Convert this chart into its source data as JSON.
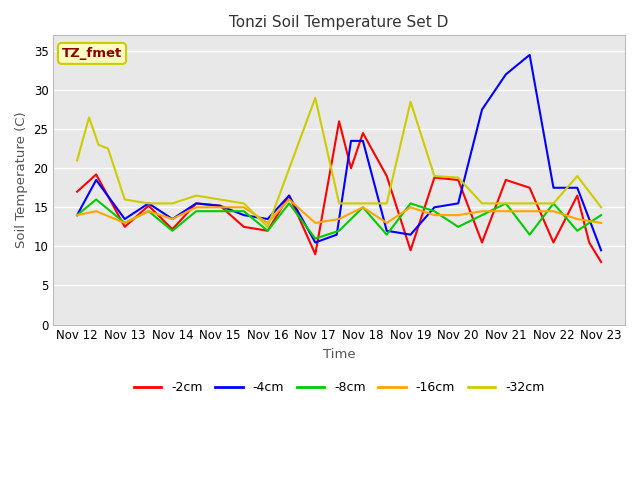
{
  "title": "Tonzi Soil Temperature Set D",
  "xlabel": "Time",
  "ylabel": "Soil Temperature (C)",
  "ylim": [
    0,
    37
  ],
  "yticks": [
    0,
    5,
    10,
    15,
    20,
    25,
    30,
    35
  ],
  "annotation_text": "TZ_fmet",
  "annotation_color": "#8B0000",
  "annotation_bg": "#FFFFC0",
  "annotation_border": "#CCCC00",
  "fig_bg": "#FFFFFF",
  "plot_bg": "#E8E8E8",
  "grid_color": "#FFFFFF",
  "x_labels": [
    "Nov 12",
    "Nov 13",
    "Nov 14",
    "Nov 15",
    "Nov 16",
    "Nov 17",
    "Nov 18",
    "Nov 19",
    "Nov 20",
    "Nov 21",
    "Nov 22",
    "Nov 23"
  ],
  "colors": {
    "-2cm": "#FF0000",
    "-4cm": "#0000FF",
    "-8cm": "#00CC00",
    "-16cm": "#FFA500",
    "-32cm": "#CCCC00"
  },
  "series": {
    "-2cm": {
      "x": [
        0,
        0.4,
        1.0,
        1.5,
        2.0,
        2.5,
        3.0,
        3.5,
        4.0,
        4.45,
        5.0,
        5.5,
        5.75,
        6.0,
        6.5,
        7.0,
        7.5,
        8.0,
        8.5,
        9.0,
        9.5,
        10.0,
        10.5,
        10.75,
        11.0
      ],
      "y": [
        17.0,
        19.2,
        12.5,
        15.2,
        12.2,
        15.5,
        15.2,
        12.5,
        12.0,
        16.5,
        9.0,
        26.0,
        20.0,
        24.5,
        19.0,
        9.5,
        18.8,
        18.5,
        10.5,
        18.5,
        17.5,
        10.5,
        16.5,
        10.5,
        8.0
      ]
    },
    "-4cm": {
      "x": [
        0,
        0.4,
        1.0,
        1.5,
        2.0,
        2.5,
        3.0,
        3.5,
        4.0,
        4.45,
        5.0,
        5.45,
        5.75,
        6.0,
        6.5,
        7.0,
        7.5,
        8.0,
        8.5,
        9.0,
        9.5,
        10.0,
        10.5,
        11.0
      ],
      "y": [
        14.0,
        18.5,
        13.5,
        15.5,
        13.5,
        15.5,
        15.2,
        14.0,
        13.5,
        16.5,
        10.5,
        11.5,
        23.5,
        23.5,
        12.0,
        11.5,
        15.0,
        15.5,
        27.5,
        32.0,
        34.5,
        17.5,
        17.5,
        9.5
      ]
    },
    "-8cm": {
      "x": [
        0,
        0.4,
        1.0,
        1.5,
        2.0,
        2.5,
        3.0,
        3.5,
        4.0,
        4.45,
        5.0,
        5.5,
        6.0,
        6.5,
        7.0,
        7.5,
        8.0,
        8.5,
        9.0,
        9.5,
        10.0,
        10.5,
        11.0
      ],
      "y": [
        14.0,
        16.0,
        13.0,
        14.5,
        12.0,
        14.5,
        14.5,
        14.5,
        12.0,
        15.5,
        11.0,
        12.0,
        15.0,
        11.5,
        15.5,
        14.5,
        12.5,
        14.0,
        15.5,
        11.5,
        15.5,
        12.0,
        14.0
      ]
    },
    "-16cm": {
      "x": [
        0,
        0.4,
        1.0,
        1.5,
        2.0,
        2.5,
        3.0,
        3.5,
        4.0,
        4.45,
        5.0,
        5.5,
        6.0,
        6.5,
        7.0,
        7.5,
        8.0,
        8.5,
        9.0,
        9.5,
        10.0,
        10.5,
        11.0
      ],
      "y": [
        14.0,
        14.5,
        13.0,
        14.5,
        13.5,
        15.0,
        15.0,
        15.0,
        13.0,
        16.0,
        13.0,
        13.5,
        15.0,
        13.0,
        15.0,
        14.0,
        14.0,
        14.5,
        14.5,
        14.5,
        14.5,
        13.5,
        13.0
      ]
    },
    "-32cm": {
      "x": [
        0,
        0.25,
        0.45,
        0.65,
        1.0,
        1.5,
        2.0,
        2.5,
        3.0,
        3.5,
        4.0,
        5.0,
        5.5,
        6.0,
        6.5,
        7.0,
        7.5,
        8.0,
        8.5,
        9.0,
        9.5,
        10.0,
        10.5,
        11.0
      ],
      "y": [
        21.0,
        26.5,
        23.0,
        22.5,
        16.0,
        15.5,
        15.5,
        16.5,
        16.0,
        15.5,
        12.5,
        29.0,
        15.5,
        15.5,
        15.5,
        28.5,
        19.0,
        18.8,
        15.5,
        15.5,
        15.5,
        15.5,
        19.0,
        15.0
      ]
    }
  }
}
